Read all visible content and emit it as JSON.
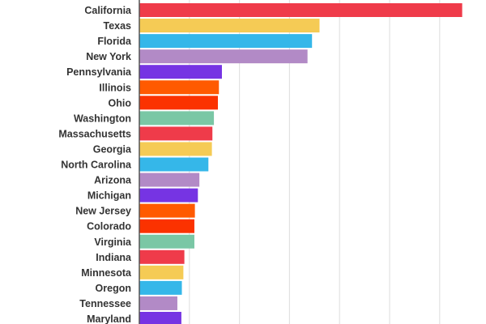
{
  "chart_data": {
    "type": "bar",
    "orientation": "horizontal",
    "title": "",
    "xlabel": "",
    "ylabel": "",
    "grid": true,
    "xlim": [
      0,
      7
    ],
    "grid_step": 1,
    "categories": [
      "California",
      "Texas",
      "Florida",
      "New York",
      "Pennsylvania",
      "Illinois",
      "Ohio",
      "Washington",
      "Massachusetts",
      "Georgia",
      "North Carolina",
      "Arizona",
      "Michigan",
      "New Jersey",
      "Colorado",
      "Virginia",
      "Indiana",
      "Minnesota",
      "Oregon",
      "Tennessee",
      "Maryland"
    ],
    "values": [
      6.45,
      3.6,
      3.45,
      3.36,
      1.65,
      1.59,
      1.57,
      1.49,
      1.46,
      1.45,
      1.38,
      1.2,
      1.17,
      1.11,
      1.1,
      1.1,
      0.9,
      0.88,
      0.85,
      0.76,
      0.84
    ],
    "colors": [
      "#EF3B4A",
      "#F5CB55",
      "#35B7E9",
      "#B28AC6",
      "#7634E3",
      "#FF5A00",
      "#FB3200",
      "#7AC7A5",
      "#EF3B4A",
      "#F5CB55",
      "#35B7E9",
      "#B28AC6",
      "#7634E3",
      "#FF5A00",
      "#FB3200",
      "#7AC7A5",
      "#EF3B4A",
      "#F5CB55",
      "#35B7E9",
      "#B28AC6",
      "#7634E3"
    ]
  }
}
